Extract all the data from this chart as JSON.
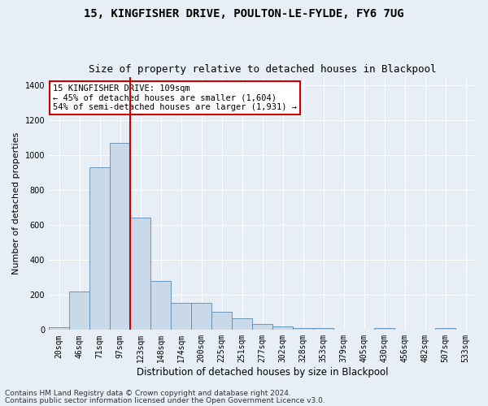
{
  "title": "15, KINGFISHER DRIVE, POULTON-LE-FYLDE, FY6 7UG",
  "subtitle": "Size of property relative to detached houses in Blackpool",
  "xlabel": "Distribution of detached houses by size in Blackpool",
  "ylabel": "Number of detached properties",
  "bar_color": "#c9d9e8",
  "bar_edge_color": "#5a8ab5",
  "bin_labels": [
    "20sqm",
    "46sqm",
    "71sqm",
    "97sqm",
    "123sqm",
    "148sqm",
    "174sqm",
    "200sqm",
    "225sqm",
    "251sqm",
    "277sqm",
    "302sqm",
    "328sqm",
    "353sqm",
    "379sqm",
    "405sqm",
    "430sqm",
    "456sqm",
    "482sqm",
    "507sqm",
    "533sqm"
  ],
  "bar_heights": [
    15,
    220,
    930,
    1070,
    645,
    280,
    155,
    155,
    103,
    65,
    35,
    20,
    10,
    10,
    0,
    0,
    10,
    0,
    0,
    10,
    0
  ],
  "ylim": [
    0,
    1450
  ],
  "yticks": [
    0,
    200,
    400,
    600,
    800,
    1000,
    1200,
    1400
  ],
  "vline_pos": 3.5,
  "vline_color": "#cc0000",
  "annotation_title": "15 KINGFISHER DRIVE: 109sqm",
  "annotation_line1": "← 45% of detached houses are smaller (1,604)",
  "annotation_line2": "54% of semi-detached houses are larger (1,931) →",
  "annotation_box_color": "#ffffff",
  "annotation_box_edge": "#cc0000",
  "footer1": "Contains HM Land Registry data © Crown copyright and database right 2024.",
  "footer2": "Contains public sector information licensed under the Open Government Licence v3.0.",
  "background_color": "#e8eef5",
  "plot_bg_color": "#e8eef5",
  "grid_color": "#ffffff",
  "title_fontsize": 10,
  "subtitle_fontsize": 9,
  "xlabel_fontsize": 8.5,
  "ylabel_fontsize": 8,
  "tick_fontsize": 7,
  "footer_fontsize": 6.5,
  "annotation_fontsize": 7.5
}
